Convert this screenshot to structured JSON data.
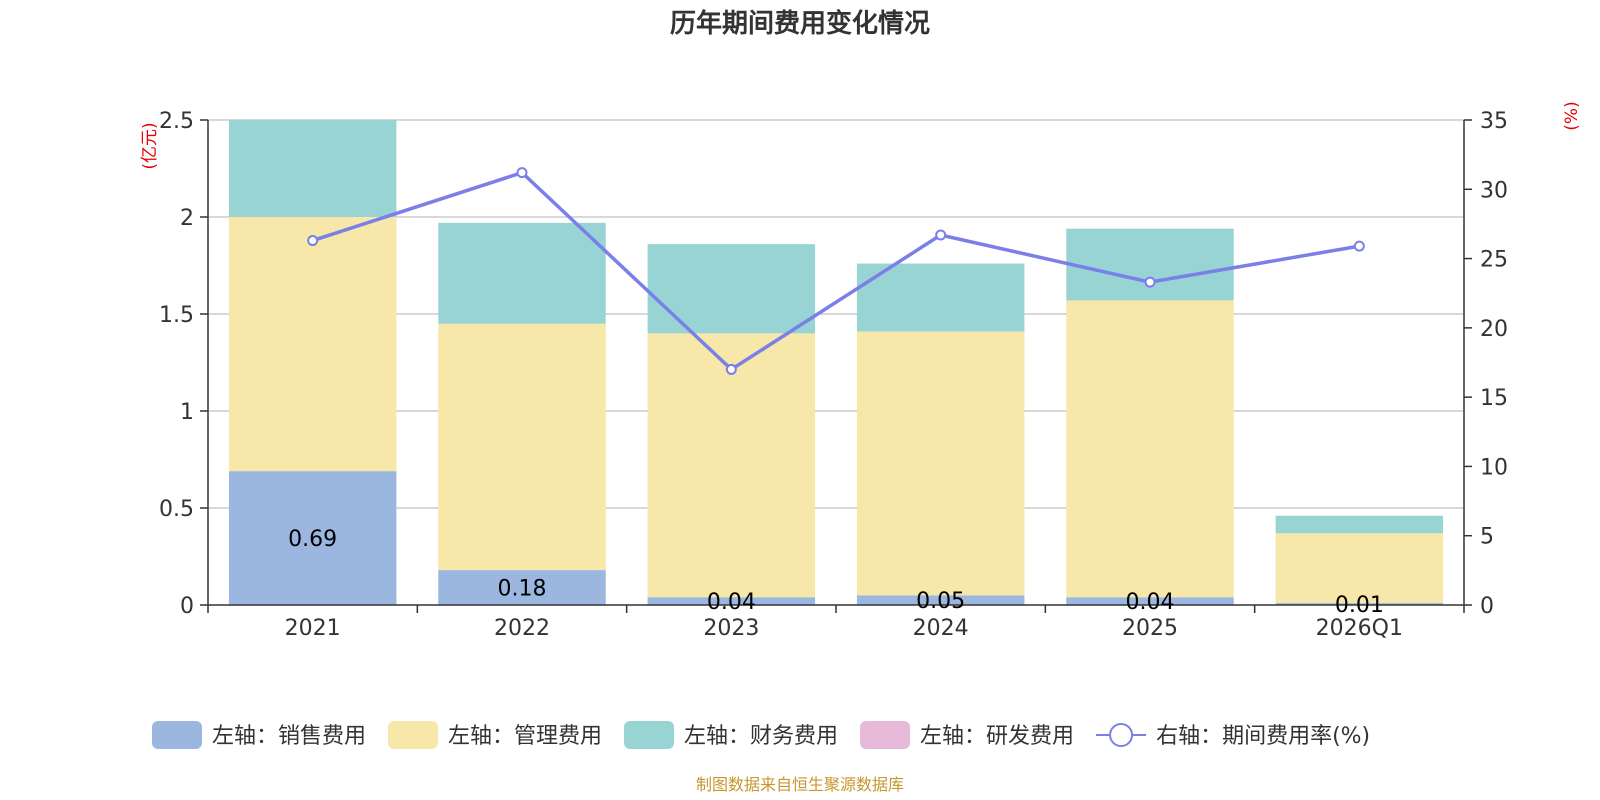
{
  "chart_data": {
    "type": "bar",
    "title": "历年期间费用变化情况",
    "categories": [
      "2021",
      "2022",
      "2023",
      "2024",
      "2025",
      "2026Q1"
    ],
    "left_axis": {
      "unit": "(亿元)",
      "ylim": [
        0,
        2.5
      ],
      "ticks": [
        "0",
        "0.5",
        "1",
        "1.5",
        "2",
        "2.5"
      ]
    },
    "right_axis": {
      "unit": "(%)",
      "ylim": [
        0,
        35
      ],
      "ticks": [
        "0",
        "5",
        "10",
        "15",
        "20",
        "25",
        "30",
        "35"
      ]
    },
    "series": [
      {
        "name": "左轴：销售费用",
        "axis": "left",
        "stack": true,
        "color": "#9bb7e0",
        "values": [
          0.69,
          0.18,
          0.04,
          0.05,
          0.04,
          0.01
        ],
        "labels": [
          "0.69",
          "0.18",
          "0.04",
          "0.05",
          "0.04",
          "0.01"
        ]
      },
      {
        "name": "左轴：管理费用",
        "axis": "left",
        "stack": true,
        "color": "#f7e7a9",
        "values": [
          1.31,
          1.27,
          1.36,
          1.36,
          1.53,
          0.36
        ]
      },
      {
        "name": "左轴：财务费用",
        "axis": "left",
        "stack": true,
        "color": "#98d4d4",
        "values": [
          0.5,
          0.52,
          0.46,
          0.35,
          0.37,
          0.09
        ]
      },
      {
        "name": "左轴：研发费用",
        "axis": "left",
        "stack": true,
        "color": "#e7b9d9",
        "values": [
          0,
          0,
          0,
          0,
          0,
          0
        ]
      },
      {
        "name": "右轴：期间费用率(%)",
        "axis": "right",
        "type": "line",
        "color": "#7b7fe8",
        "values": [
          26.3,
          31.2,
          17.0,
          26.7,
          23.3,
          25.9
        ]
      }
    ],
    "source": "制图数据来自恒生聚源数据库"
  }
}
